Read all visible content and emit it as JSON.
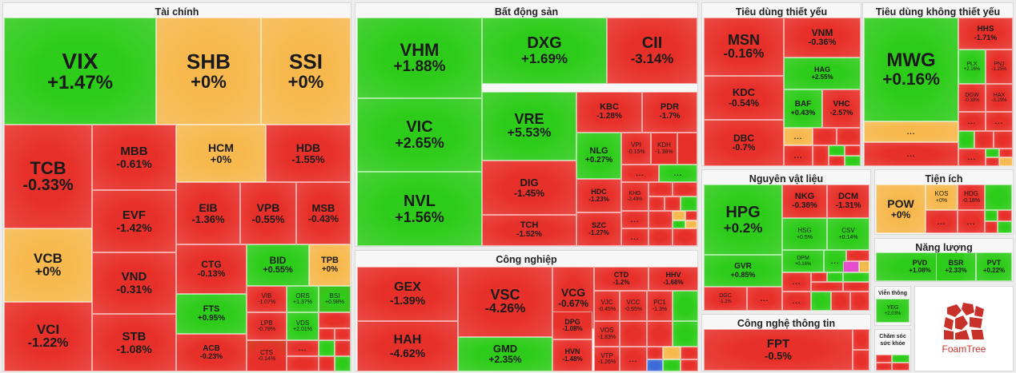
{
  "chart_data": {
    "type": "treemap",
    "colors": {
      "up": "#2ecc1a",
      "down": "#e8302a",
      "flat": "#f7b94e",
      "pink": "#e84ad0",
      "blue": "#3a6bd8"
    },
    "groups": [
      {
        "name": "Tài chính",
        "tiles": [
          {
            "t": "VIX",
            "p": "+1.47%"
          },
          {
            "t": "SHB",
            "p": "+0%"
          },
          {
            "t": "SSI",
            "p": "+0%"
          },
          {
            "t": "TCB",
            "p": "-0.33%"
          },
          {
            "t": "VCB",
            "p": "+0%"
          },
          {
            "t": "VCI",
            "p": "-1.22%"
          },
          {
            "t": "MBB",
            "p": "-0.61%"
          },
          {
            "t": "HCM",
            "p": "+0%"
          },
          {
            "t": "HDB",
            "p": "-1.55%"
          },
          {
            "t": "EVF",
            "p": "-1.42%"
          },
          {
            "t": "EIB",
            "p": "-1.36%"
          },
          {
            "t": "VPB",
            "p": "-0.55%"
          },
          {
            "t": "MSB",
            "p": "-0.43%"
          },
          {
            "t": "VND",
            "p": "-0.31%"
          },
          {
            "t": "CTG",
            "p": "-0.13%"
          },
          {
            "t": "BID",
            "p": "+0.55%"
          },
          {
            "t": "TPB",
            "p": "+0%"
          },
          {
            "t": "STB",
            "p": "-1.08%"
          },
          {
            "t": "FTS",
            "p": "+0.95%"
          },
          {
            "t": "ACB",
            "p": "-0.23%"
          },
          {
            "t": "VIB",
            "p": "-1.07%"
          },
          {
            "t": "ORS",
            "p": "+1.37%"
          },
          {
            "t": "BSI",
            "p": "+0.98%"
          },
          {
            "t": "LPB",
            "p": "-0.78%"
          },
          {
            "t": "VDS",
            "p": "+2.01%"
          },
          {
            "t": "CTS",
            "p": "-0.14%"
          }
        ]
      },
      {
        "name": "Bất động sản",
        "tiles": [
          {
            "t": "VHM",
            "p": "+1.88%"
          },
          {
            "t": "DXG",
            "p": "+1.69%"
          },
          {
            "t": "CII",
            "p": "-3.14%"
          },
          {
            "t": "VIC",
            "p": "+2.65%"
          },
          {
            "t": "VRE",
            "p": "+5.53%"
          },
          {
            "t": "KBC",
            "p": "-1.28%"
          },
          {
            "t": "PDR",
            "p": "-1.7%"
          },
          {
            "t": "NVL",
            "p": "+1.56%"
          },
          {
            "t": "NLG",
            "p": "+0.27%"
          },
          {
            "t": "VPI",
            "p": "-0.15%"
          },
          {
            "t": "KDH",
            "p": "-1.38%"
          },
          {
            "t": "DIG",
            "p": "-1.45%"
          },
          {
            "t": "HDC",
            "p": "-1.23%"
          },
          {
            "t": "KHG",
            "p": "-2.49%"
          },
          {
            "t": "TCH",
            "p": "-1.52%"
          },
          {
            "t": "SZC",
            "p": "-1.27%"
          }
        ]
      },
      {
        "name": "Công nghiệp",
        "tiles": [
          {
            "t": "GEX",
            "p": "-1.39%"
          },
          {
            "t": "VSC",
            "p": "-4.26%"
          },
          {
            "t": "VCG",
            "p": "-0.67%"
          },
          {
            "t": "CTD",
            "p": "-1.2%"
          },
          {
            "t": "HHV",
            "p": "-1.68%"
          },
          {
            "t": "VJC",
            "p": "-0.45%"
          },
          {
            "t": "VCC",
            "p": "-0.55%"
          },
          {
            "t": "PC1",
            "p": "-1.3%"
          },
          {
            "t": "DPG",
            "p": "-1.08%"
          },
          {
            "t": "VOS",
            "p": "-1.83%"
          },
          {
            "t": "HAH",
            "p": "-4.62%"
          },
          {
            "t": "GMD",
            "p": "+2.35%"
          },
          {
            "t": "HVN",
            "p": "-1.48%"
          },
          {
            "t": "VTP",
            "p": "-1.26%"
          }
        ]
      },
      {
        "name": "Tiêu dùng thiết yếu",
        "tiles": [
          {
            "t": "MSN",
            "p": "-0.16%"
          },
          {
            "t": "VNM",
            "p": "-0.36%"
          },
          {
            "t": "HAG",
            "p": "+2.55%"
          },
          {
            "t": "KDC",
            "p": "-0.54%"
          },
          {
            "t": "BAF",
            "p": "+0.43%"
          },
          {
            "t": "VHC",
            "p": "-2.57%"
          },
          {
            "t": "DBC",
            "p": "-0.7%"
          }
        ]
      },
      {
        "name": "Tiêu dùng không thiết yếu",
        "tiles": [
          {
            "t": "MWG",
            "p": "+0.16%"
          },
          {
            "t": "HHS",
            "p": "-1.71%"
          },
          {
            "t": "PLX",
            "p": "+2.16%"
          },
          {
            "t": "PNJ",
            "p": "-1.25%"
          },
          {
            "t": "DGW",
            "p": "-0.39%"
          },
          {
            "t": "HAX",
            "p": "-3.29%"
          }
        ]
      },
      {
        "name": "Nguyên vật liệu",
        "tiles": [
          {
            "t": "HPG",
            "p": "+0.2%"
          },
          {
            "t": "NKG",
            "p": "-0.38%"
          },
          {
            "t": "DCM",
            "p": "-1.31%"
          },
          {
            "t": "HSG",
            "p": "+0.5%"
          },
          {
            "t": "CSV",
            "p": "+0.14%"
          },
          {
            "t": "DPM",
            "p": "+0.16%"
          },
          {
            "t": "GVR",
            "p": "+0.85%"
          },
          {
            "t": "DGC",
            "p": "-1.2%"
          }
        ]
      },
      {
        "name": "Tiện ích",
        "tiles": [
          {
            "t": "POW",
            "p": "+0%"
          },
          {
            "t": "KOS",
            "p": "+0%"
          },
          {
            "t": "HDG",
            "p": "-0.18%"
          }
        ]
      },
      {
        "name": "Năng lượng",
        "tiles": [
          {
            "t": "PVD",
            "p": "+1.08%"
          },
          {
            "t": "BSR",
            "p": "+2.33%"
          },
          {
            "t": "PVT",
            "p": "+0.22%"
          }
        ]
      },
      {
        "name": "Công nghệ thông tin",
        "tiles": [
          {
            "t": "FPT",
            "p": "-0.5%"
          }
        ]
      },
      {
        "name": "Viễn thông",
        "tiles": [
          {
            "t": "YEG",
            "p": "+2.03%"
          }
        ]
      },
      {
        "name": "Chăm sóc sức khỏe",
        "tiles": []
      }
    ],
    "more_label": "...",
    "brand": "FoamTree"
  }
}
